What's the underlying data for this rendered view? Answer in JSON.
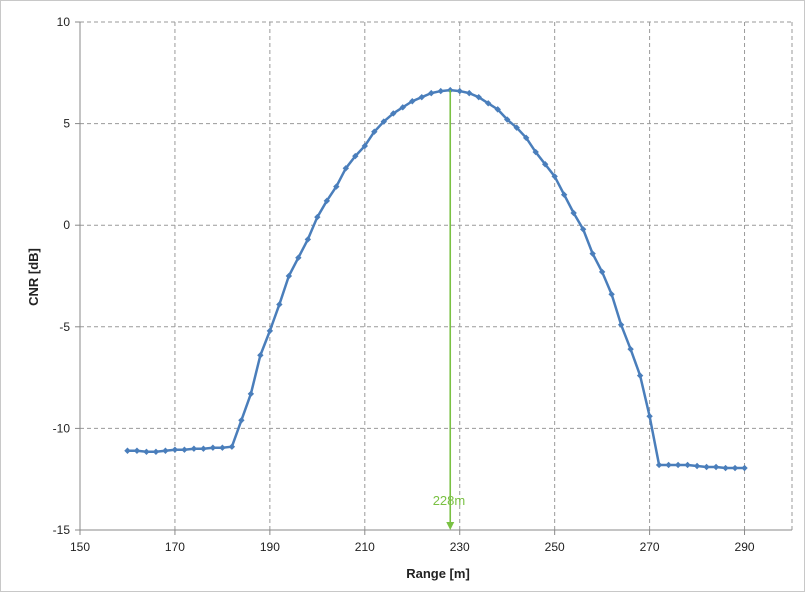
{
  "chart_data": {
    "type": "line",
    "title": "",
    "xlabel": "Range [m]",
    "ylabel": "CNR [dB]",
    "xlim": [
      150,
      300
    ],
    "ylim": [
      -15,
      10
    ],
    "x_ticks": [
      150,
      170,
      190,
      210,
      230,
      250,
      270,
      290
    ],
    "y_ticks": [
      -15,
      -10,
      -5,
      0,
      5,
      10
    ],
    "x_tick_labels": [
      "150",
      "170",
      "190",
      "210",
      "230",
      "250",
      "270",
      "290"
    ],
    "y_tick_labels": [
      "-15",
      "-10",
      "-5",
      "0",
      "5",
      "10"
    ],
    "grid": true,
    "colors": {
      "series": "#4a7ebb",
      "annotation": "#7ac143"
    },
    "series": [
      {
        "name": "",
        "x": [
          160,
          162,
          164,
          166,
          168,
          170,
          172,
          174,
          176,
          178,
          180,
          182,
          184,
          186,
          188,
          190,
          192,
          194,
          196,
          198,
          200,
          202,
          204,
          206,
          208,
          210,
          212,
          214,
          216,
          218,
          220,
          222,
          224,
          226,
          228,
          230,
          232,
          234,
          236,
          238,
          240,
          242,
          244,
          246,
          248,
          250,
          252,
          254,
          256,
          258,
          260,
          262,
          264,
          266,
          268,
          270,
          272,
          274,
          276,
          278,
          280,
          282,
          284,
          286,
          288,
          290
        ],
        "y": [
          -11.1,
          -11.1,
          -11.15,
          -11.15,
          -11.1,
          -11.05,
          -11.05,
          -11.0,
          -11.0,
          -10.95,
          -10.95,
          -10.9,
          -9.6,
          -8.3,
          -6.4,
          -5.2,
          -3.9,
          -2.5,
          -1.6,
          -0.7,
          0.4,
          1.2,
          1.9,
          2.8,
          3.4,
          3.9,
          4.6,
          5.1,
          5.5,
          5.8,
          6.1,
          6.3,
          6.5,
          6.6,
          6.65,
          6.6,
          6.5,
          6.3,
          6.0,
          5.7,
          5.2,
          4.8,
          4.3,
          3.6,
          3.0,
          2.4,
          1.5,
          0.6,
          -0.2,
          -1.4,
          -2.3,
          -3.4,
          -4.9,
          -6.1,
          -7.4,
          -9.4,
          -11.8,
          -11.8,
          -11.8,
          -11.8,
          -11.85,
          -11.9,
          -11.9,
          -11.95,
          -11.95,
          -11.95
        ]
      }
    ],
    "annotations": [
      {
        "text": "228m",
        "x": 228,
        "y_from": 6.65,
        "y_to": -15
      }
    ]
  }
}
